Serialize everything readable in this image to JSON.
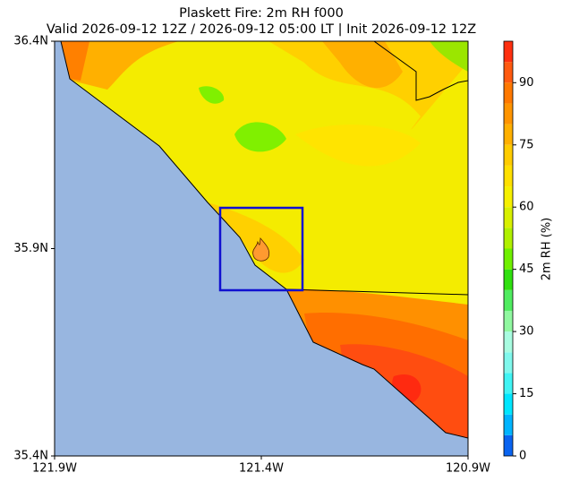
{
  "title": "Plaskett Fire: 2m RH f000",
  "subtitle": "Valid 2026-09-12 12Z / 2026-09-12 05:00 LT | Init 2026-09-12 12Z",
  "axes": {
    "xlim": [
      -121.9,
      -120.9
    ],
    "ylim": [
      35.4,
      36.4
    ],
    "xticks": [
      {
        "value": -121.9,
        "label": "121.9W"
      },
      {
        "value": -121.4,
        "label": "121.4W"
      },
      {
        "value": -120.9,
        "label": "120.9W"
      }
    ],
    "yticks": [
      {
        "value": 35.4,
        "label": "35.4N"
      },
      {
        "value": 35.9,
        "label": "35.9N"
      },
      {
        "value": 36.4,
        "label": "36.4N"
      }
    ]
  },
  "colorbar": {
    "label": "2m RH (%)",
    "lim": [
      0,
      100
    ],
    "ticks": [
      0,
      15,
      30,
      45,
      60,
      75,
      90
    ],
    "levels": [
      0,
      5,
      10,
      15,
      20,
      25,
      30,
      35,
      40,
      45,
      50,
      55,
      60,
      65,
      70,
      75,
      80,
      85,
      90,
      95,
      100
    ],
    "colors": [
      "#0a64f0",
      "#00b4ff",
      "#00e6ff",
      "#40f4f4",
      "#80f8ec",
      "#a8fce0",
      "#90f8a0",
      "#50ec60",
      "#30e010",
      "#70f000",
      "#b0f000",
      "#d8f000",
      "#f6f000",
      "#ffe000",
      "#ffcc00",
      "#ffb000",
      "#ff9400",
      "#ff7800",
      "#ff5a10",
      "#ff3010"
    ]
  }
}
